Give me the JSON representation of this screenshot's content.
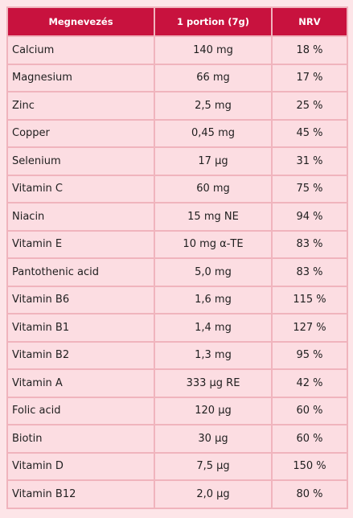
{
  "table": {
    "headers": [
      "Megnevezés",
      "1 portion (7g)",
      "NRV"
    ],
    "rows": [
      [
        "Calcium",
        "140 mg",
        "18 %"
      ],
      [
        "Magnesium",
        "66 mg",
        "17 %"
      ],
      [
        "Zinc",
        "2,5 mg",
        "25 %"
      ],
      [
        "Copper",
        "0,45 mg",
        "45 %"
      ],
      [
        "Selenium",
        "17 µg",
        "31 %"
      ],
      [
        "Vitamin C",
        "60 mg",
        "75 %"
      ],
      [
        "Niacin",
        "15 mg NE",
        "94 %"
      ],
      [
        "Vitamin E",
        "10 mg α-TE",
        "83 %"
      ],
      [
        "Pantothenic acid",
        "5,0 mg",
        "83 %"
      ],
      [
        "Vitamin B6",
        "1,6 mg",
        "115 %"
      ],
      [
        "Vitamin B1",
        "1,4 mg",
        "127 %"
      ],
      [
        "Vitamin B2",
        "1,3 mg",
        "95 %"
      ],
      [
        "Vitamin A",
        "333 µg RE",
        "42 %"
      ],
      [
        "Folic acid",
        "120 µg",
        "60 %"
      ],
      [
        "Biotin",
        "30 µg",
        "60 %"
      ],
      [
        "Vitamin D",
        "7,5 µg",
        "150 %"
      ],
      [
        "Vitamin B12",
        "2,0 µg",
        "80 %"
      ]
    ]
  },
  "colors": {
    "header_background": "#c8123e",
    "header_text": "#ffffff",
    "cell_background": "#fcdde2",
    "border": "#f0b4bd",
    "page_background": "#fde5e8"
  }
}
